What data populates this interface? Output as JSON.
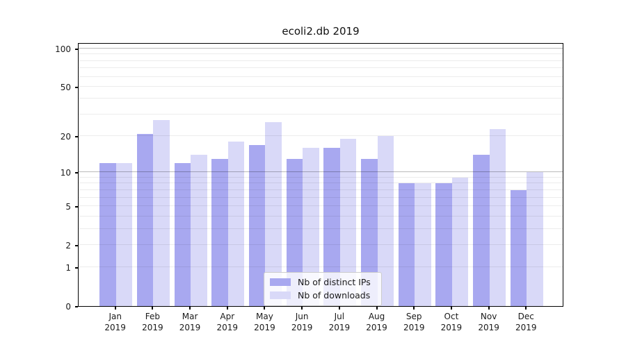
{
  "title": "ecoli2.db 2019",
  "chart_data": {
    "type": "bar",
    "title": "ecoli2.db 2019",
    "categories": [
      "Jan",
      "Feb",
      "Mar",
      "Apr",
      "May",
      "Jun",
      "Jul",
      "Aug",
      "Sep",
      "Oct",
      "Nov",
      "Dec"
    ],
    "category_year": "2019",
    "series": [
      {
        "name": "Nb of distinct IPs",
        "color": "#a8a8f0",
        "values": [
          12,
          21,
          12,
          13,
          17,
          13,
          16,
          13,
          8,
          8,
          14,
          7
        ]
      },
      {
        "name": "Nb of downloads",
        "color": "#d9d9f8",
        "values": [
          12,
          27,
          14,
          18,
          26,
          16,
          19,
          20,
          8,
          9,
          23,
          10
        ]
      }
    ],
    "y_scale": "log1p",
    "ylim": [
      0,
      100
    ],
    "y_ticks": [
      100,
      50,
      20,
      10,
      5,
      2,
      1,
      0
    ],
    "y_gridlines_minor": [
      1,
      2,
      3,
      4,
      5,
      6,
      7,
      8,
      9,
      20,
      30,
      40,
      50,
      60,
      70,
      80,
      90
    ],
    "y_gridlines_major": [
      10,
      100
    ],
    "grid": true,
    "grid_above_bars": true,
    "legend_position": "bottom-center",
    "colors": {
      "axis": "#000000",
      "grid_minor": "#ebebeb",
      "grid_major": "#bababa",
      "text": "#1a1a1a",
      "legend_border": "#cccccc",
      "legend_background": "rgba(255,255,255,0.8)"
    }
  }
}
